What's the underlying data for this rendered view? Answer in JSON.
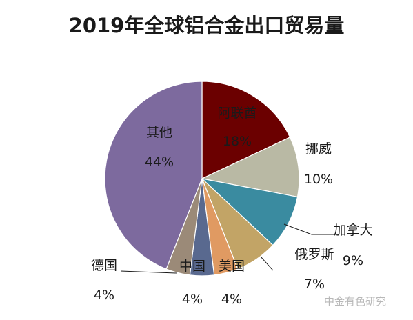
{
  "chart_data": {
    "type": "pie",
    "title": "2019年全球铝合金出口贸易量",
    "slices": [
      {
        "label": "阿联酋",
        "value_label": "18%",
        "value": 18,
        "color": "#6b0000"
      },
      {
        "label": "挪威",
        "value_label": "10%",
        "value": 10,
        "color": "#b9b9a4"
      },
      {
        "label": "加拿大",
        "value_label": "9%",
        "value": 9,
        "color": "#3a8ba0"
      },
      {
        "label": "俄罗斯",
        "value_label": "7%",
        "value": 7,
        "color": "#c2a466"
      },
      {
        "label": "美国",
        "value_label": "4%",
        "value": 4,
        "color": "#e09a62"
      },
      {
        "label": "中国",
        "value_label": "4%",
        "value": 4,
        "color": "#59698f"
      },
      {
        "label": "德国",
        "value_label": "4%",
        "value": 4,
        "color": "#9b8a78"
      },
      {
        "label": "其他",
        "value_label": "44%",
        "value": 44,
        "color": "#7d6a9e"
      }
    ],
    "start_angle_deg": 0,
    "direction": "clockwise"
  },
  "watermark": "中金有色研究"
}
